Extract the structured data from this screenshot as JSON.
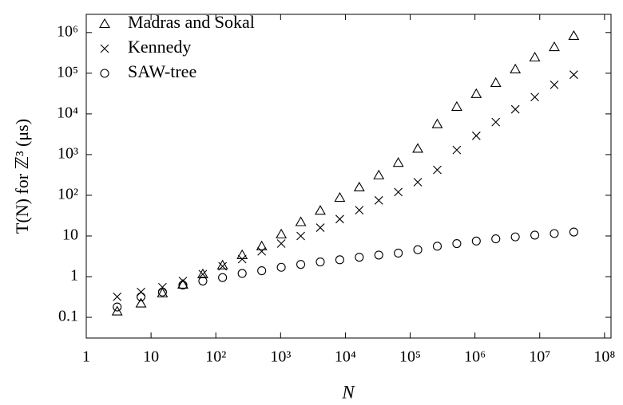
{
  "chart_data": {
    "type": "scatter",
    "x_label": "N",
    "y_label": "T(N) for ℤ³ (μs)",
    "xscale": "log",
    "yscale": "log",
    "x": [
      3,
      7,
      15,
      31,
      63,
      127,
      255,
      511,
      1023,
      2047,
      4095,
      8191,
      16383,
      32767,
      65535,
      131071,
      262143,
      524287,
      1048575,
      2097151,
      4194303,
      8388607,
      16777215,
      33554431
    ],
    "series": [
      {
        "name": "Madras and Sokal",
        "color": "#000000",
        "marker": "triangle",
        "values": [
          0.14,
          0.22,
          0.39,
          0.64,
          1.15,
          1.9,
          3.4,
          5.6,
          11,
          22,
          42,
          87,
          157,
          310,
          630,
          1400,
          5600,
          15000,
          31000,
          58000,
          125000,
          245000,
          440000,
          830000
        ]
      },
      {
        "name": "Kennedy",
        "color": "#000000",
        "marker": "x",
        "values": [
          0.32,
          0.42,
          0.55,
          0.78,
          1.15,
          1.8,
          2.7,
          4.2,
          6.5,
          10,
          16,
          26,
          43,
          75,
          120,
          210,
          420,
          1300,
          2900,
          6300,
          13000,
          26000,
          52000,
          92000
        ]
      },
      {
        "name": "SAW-tree",
        "color": "#000000",
        "marker": "circle",
        "values": [
          0.18,
          0.32,
          0.42,
          0.62,
          0.78,
          0.95,
          1.2,
          1.4,
          1.7,
          2.0,
          2.3,
          2.6,
          3.0,
          3.4,
          3.8,
          4.6,
          5.6,
          6.5,
          7.5,
          8.5,
          9.5,
          10.5,
          11.5,
          12.5
        ]
      }
    ],
    "xlim": [
      1,
      126000000
    ],
    "ylim": [
      0.031,
      2800000
    ],
    "xticks": [
      1,
      10,
      {
        "value": 100,
        "label": "10²"
      },
      {
        "value": 1000,
        "label": "10³"
      },
      {
        "value": 10000,
        "label": "10⁴"
      },
      {
        "value": 100000,
        "label": "10⁵"
      },
      {
        "value": 1000000,
        "label": "10⁶"
      },
      {
        "value": 10000000,
        "label": "10⁷"
      },
      {
        "value": 100000000,
        "label": "10⁸"
      }
    ],
    "yticks": [
      0.1,
      1,
      10,
      {
        "value": 100,
        "label": "10²"
      },
      {
        "value": 1000,
        "label": "10³"
      },
      {
        "value": 10000,
        "label": "10⁴"
      },
      {
        "value": 100000,
        "label": "10⁵"
      },
      {
        "value": 1000000,
        "label": "10⁶"
      }
    ],
    "legend": "upper left"
  }
}
